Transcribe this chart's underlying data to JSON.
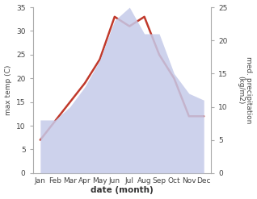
{
  "months": [
    "Jan",
    "Feb",
    "Mar",
    "Apr",
    "May",
    "Jun",
    "Jul",
    "Aug",
    "Sep",
    "Oct",
    "Nov",
    "Dec"
  ],
  "temperature": [
    7,
    11,
    15,
    19,
    24,
    33,
    31,
    33,
    25,
    20,
    12,
    12
  ],
  "precipitation": [
    8,
    8,
    10,
    13,
    17,
    23,
    25,
    21,
    21,
    15,
    12,
    11
  ],
  "temp_color": "#c0392b",
  "precip_color": "#c5cae9",
  "temp_ylim": [
    0,
    35
  ],
  "precip_ylim": [
    0,
    25
  ],
  "temp_yticks": [
    0,
    5,
    10,
    15,
    20,
    25,
    30,
    35
  ],
  "precip_yticks": [
    0,
    5,
    10,
    15,
    20,
    25
  ],
  "xlabel": "date (month)",
  "ylabel_left": "max temp (C)",
  "ylabel_right": "med. precipitation\n(kg/m2)",
  "background_color": "#ffffff",
  "line_width": 1.8
}
